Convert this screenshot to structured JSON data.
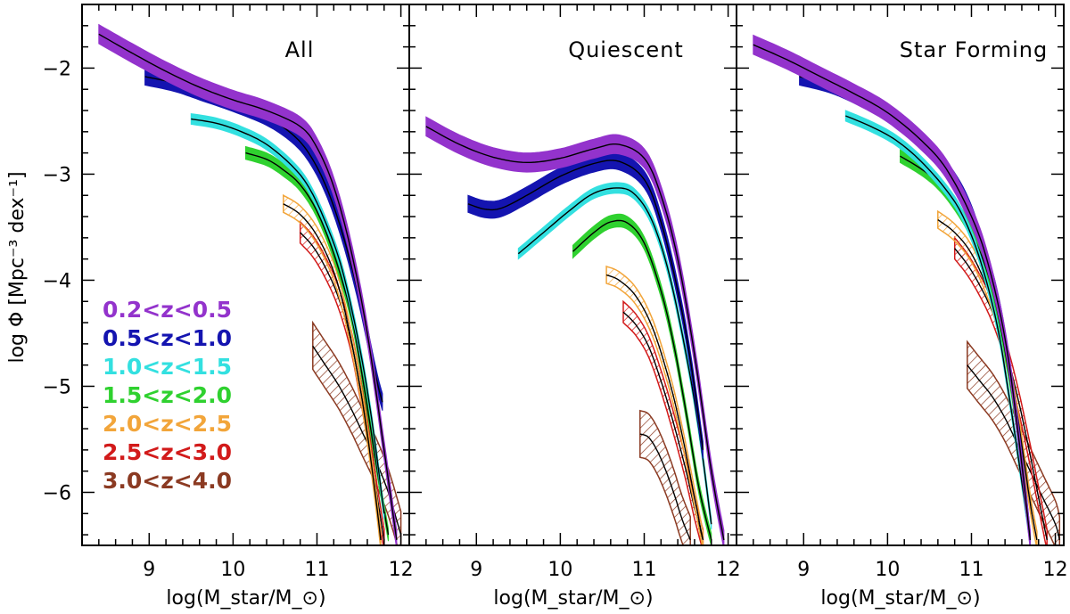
{
  "chart_data": {
    "type": "line",
    "ylabel": "log Φ [Mpc⁻³ dex⁻¹]",
    "xlabel": "log(M_star/M_⊙)",
    "xlim": [
      8.2,
      12.1
    ],
    "ylim": [
      -6.5,
      -1.4
    ],
    "xticks": [
      "9",
      "10",
      "11",
      "12"
    ],
    "yticks": [
      "−2",
      "−3",
      "−4",
      "−5",
      "−6"
    ],
    "panels": [
      {
        "label": "All",
        "series": [
          {
            "name": "0.2<z<0.5",
            "x": [
              8.4,
              8.8,
              9.2,
              9.6,
              10.0,
              10.4,
              10.8,
              11.0,
              11.2,
              11.4,
              11.6,
              11.8,
              11.95
            ],
            "y": [
              -1.68,
              -1.86,
              -2.03,
              -2.18,
              -2.3,
              -2.4,
              -2.55,
              -2.75,
              -3.12,
              -3.7,
              -4.5,
              -5.6,
              -6.45
            ]
          },
          {
            "name": "0.5<z<1.0",
            "x": [
              8.95,
              9.3,
              9.6,
              10.0,
              10.4,
              10.7,
              10.9,
              11.1,
              11.3,
              11.5,
              11.7,
              11.78
            ],
            "y": [
              -2.08,
              -2.14,
              -2.22,
              -2.33,
              -2.46,
              -2.62,
              -2.8,
              -3.1,
              -3.55,
              -4.15,
              -4.9,
              -5.15
            ]
          },
          {
            "name": "1.0<z<1.5",
            "x": [
              9.5,
              9.8,
              10.1,
              10.4,
              10.7,
              10.9,
              11.1,
              11.3,
              11.5,
              11.65,
              11.8
            ],
            "y": [
              -2.48,
              -2.52,
              -2.6,
              -2.72,
              -2.92,
              -3.12,
              -3.45,
              -3.9,
              -4.6,
              -5.3,
              -6.2
            ]
          },
          {
            "name": "1.5<z<2.0",
            "x": [
              10.15,
              10.4,
              10.6,
              10.8,
              11.0,
              11.2,
              11.4,
              11.55,
              11.7,
              11.85
            ],
            "y": [
              -2.8,
              -2.86,
              -2.96,
              -3.1,
              -3.35,
              -3.75,
              -4.3,
              -4.95,
              -5.7,
              -6.4
            ]
          },
          {
            "name": "2.0<z<2.5",
            "x": [
              10.6,
              10.8,
              11.0,
              11.2,
              11.35,
              11.5,
              11.6,
              11.7,
              11.76
            ],
            "y": [
              -3.28,
              -3.38,
              -3.58,
              -3.92,
              -4.35,
              -4.95,
              -5.45,
              -6.05,
              -6.45
            ]
          },
          {
            "name": "2.5<z<3.0",
            "x": [
              10.8,
              10.95,
              11.1,
              11.25,
              11.4,
              11.5,
              11.6,
              11.7,
              11.8
            ],
            "y": [
              -3.55,
              -3.68,
              -3.88,
              -4.15,
              -4.55,
              -4.95,
              -5.4,
              -5.95,
              -6.45
            ]
          },
          {
            "name": "3.0<z<4.0",
            "x": [
              10.95,
              11.1,
              11.25,
              11.4,
              11.55,
              11.7,
              11.85,
              12.0
            ],
            "y": [
              -4.62,
              -4.8,
              -4.98,
              -5.2,
              -5.45,
              -5.7,
              -6.0,
              -6.4
            ]
          }
        ]
      },
      {
        "label": "Quiescent",
        "series": [
          {
            "name": "0.2<z<0.5",
            "x": [
              8.4,
              8.8,
              9.2,
              9.6,
              10.0,
              10.4,
              10.7,
              11.0,
              11.2,
              11.4,
              11.6,
              11.8,
              11.95
            ],
            "y": [
              -2.55,
              -2.72,
              -2.84,
              -2.89,
              -2.85,
              -2.76,
              -2.72,
              -2.85,
              -3.2,
              -3.8,
              -4.7,
              -5.8,
              -6.45
            ]
          },
          {
            "name": "0.5<z<1.0",
            "x": [
              8.9,
              9.1,
              9.3,
              9.6,
              10.0,
              10.4,
              10.7,
              11.0,
              11.2,
              11.4,
              11.55,
              11.7
            ],
            "y": [
              -3.28,
              -3.33,
              -3.32,
              -3.2,
              -3.02,
              -2.9,
              -2.88,
              -3.05,
              -3.45,
              -4.1,
              -4.75,
              -5.6
            ]
          },
          {
            "name": "1.0<z<1.5",
            "x": [
              9.5,
              9.8,
              10.1,
              10.4,
              10.7,
              10.9,
              11.1,
              11.3,
              11.5,
              11.65,
              11.8
            ],
            "y": [
              -3.75,
              -3.55,
              -3.35,
              -3.18,
              -3.13,
              -3.2,
              -3.45,
              -3.95,
              -4.7,
              -5.4,
              -6.3
            ]
          },
          {
            "name": "1.5<z<2.0",
            "x": [
              10.15,
              10.4,
              10.6,
              10.8,
              11.0,
              11.2,
              11.35,
              11.5,
              11.65,
              11.8
            ],
            "y": [
              -3.73,
              -3.55,
              -3.45,
              -3.46,
              -3.65,
              -4.1,
              -4.6,
              -5.25,
              -5.95,
              -6.45
            ]
          },
          {
            "name": "2.0<z<2.5",
            "x": [
              10.55,
              10.7,
              10.9,
              11.1,
              11.3,
              11.45,
              11.6,
              11.7
            ],
            "y": [
              -3.95,
              -4.0,
              -4.15,
              -4.45,
              -4.95,
              -5.45,
              -6.05,
              -6.45
            ]
          },
          {
            "name": "2.5<z<3.0",
            "x": [
              10.75,
              10.9,
              11.05,
              11.2,
              11.35,
              11.5,
              11.6,
              11.7
            ],
            "y": [
              -4.3,
              -4.42,
              -4.62,
              -4.95,
              -5.35,
              -5.8,
              -6.15,
              -6.45
            ]
          },
          {
            "name": "3.0<z<4.0",
            "x": [
              10.95,
              11.05,
              11.15,
              11.25,
              11.35,
              11.45,
              11.55
            ],
            "y": [
              -5.45,
              -5.48,
              -5.6,
              -5.78,
              -6.0,
              -6.25,
              -6.45
            ]
          }
        ]
      },
      {
        "label": "Star Forming",
        "series": [
          {
            "name": "0.2<z<0.5",
            "x": [
              8.4,
              8.8,
              9.2,
              9.6,
              10.0,
              10.4,
              10.7,
              11.0,
              11.2,
              11.4,
              11.55,
              11.7
            ],
            "y": [
              -1.78,
              -1.92,
              -2.08,
              -2.24,
              -2.42,
              -2.68,
              -2.95,
              -3.4,
              -3.85,
              -4.55,
              -5.4,
              -6.45
            ]
          },
          {
            "name": "0.5<z<1.0",
            "x": [
              8.95,
              9.3,
              9.6,
              10.0,
              10.3,
              10.6,
              10.9,
              11.1,
              11.3,
              11.45,
              11.6,
              11.7
            ],
            "y": [
              -2.08,
              -2.15,
              -2.25,
              -2.42,
              -2.6,
              -2.85,
              -3.2,
              -3.6,
              -4.15,
              -4.8,
              -5.7,
              -6.45
            ]
          },
          {
            "name": "1.0<z<1.5",
            "x": [
              9.5,
              9.8,
              10.1,
              10.4,
              10.7,
              10.9,
              11.1,
              11.3,
              11.45,
              11.6,
              11.7
            ],
            "y": [
              -2.45,
              -2.55,
              -2.68,
              -2.88,
              -3.15,
              -3.4,
              -3.8,
              -4.4,
              -5.1,
              -5.9,
              -6.45
            ]
          },
          {
            "name": "1.5<z<2.0",
            "x": [
              10.15,
              10.4,
              10.6,
              10.8,
              11.0,
              11.2,
              11.35,
              11.5,
              11.6,
              11.7
            ],
            "y": [
              -2.83,
              -2.95,
              -3.08,
              -3.28,
              -3.55,
              -3.95,
              -4.45,
              -5.15,
              -5.75,
              -6.45
            ]
          },
          {
            "name": "2.0<z<2.5",
            "x": [
              10.6,
              10.8,
              11.0,
              11.2,
              11.35,
              11.5,
              11.6,
              11.7,
              11.78
            ],
            "y": [
              -3.43,
              -3.55,
              -3.75,
              -4.1,
              -4.5,
              -5.05,
              -5.55,
              -6.1,
              -6.45
            ]
          },
          {
            "name": "2.5<z<3.0",
            "x": [
              10.8,
              10.95,
              11.1,
              11.25,
              11.4,
              11.55,
              11.7,
              11.8,
              11.9
            ],
            "y": [
              -3.7,
              -3.85,
              -4.05,
              -4.3,
              -4.65,
              -5.1,
              -5.65,
              -6.05,
              -6.45
            ]
          },
          {
            "name": "3.0<z<4.0",
            "x": [
              10.95,
              11.1,
              11.25,
              11.4,
              11.55,
              11.7,
              11.85,
              12.0,
              12.05
            ],
            "y": [
              -4.8,
              -4.95,
              -5.1,
              -5.3,
              -5.55,
              -5.8,
              -6.05,
              -6.3,
              -6.45
            ]
          }
        ]
      }
    ]
  },
  "legend": [
    {
      "label": "0.2<z<0.5",
      "fill": "#9333cc",
      "stroke": "#7a1fb5"
    },
    {
      "label": "0.5<z<1.0",
      "fill": "#1414b0",
      "stroke": "#0a0a80"
    },
    {
      "label": "1.0<z<1.5",
      "fill": "#33e0e0",
      "stroke": "#1fb8b8"
    },
    {
      "label": "1.5<z<2.0",
      "fill": "#2fd12f",
      "stroke": "#1a9a1a"
    },
    {
      "label": "2.0<z<2.5",
      "fill": "#f2a53a",
      "stroke": "#c77a10"
    },
    {
      "label": "2.5<z<3.0",
      "fill": "#d21a1a",
      "stroke": "#9a0a0a"
    },
    {
      "label": "3.0<z<4.0",
      "fill": "#8b3a22",
      "stroke": "#5a2410"
    }
  ],
  "bands": [
    {
      "style": "solid",
      "width": 0.09
    },
    {
      "style": "solid",
      "width": 0.08
    },
    {
      "style": "solid",
      "width": 0.05
    },
    {
      "style": "solid",
      "width": 0.06
    },
    {
      "style": "hatch",
      "width": 0.08
    },
    {
      "style": "hatch",
      "width": 0.1
    },
    {
      "style": "hatch",
      "width": 0.22
    }
  ]
}
